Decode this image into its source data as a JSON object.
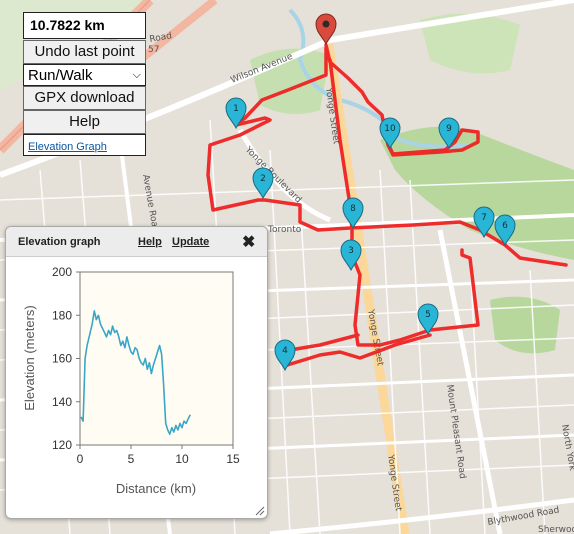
{
  "controls": {
    "distance": "10.7822 km",
    "undo_label": "Undo last point",
    "activity_selected": "Run/Walk",
    "gpx_label": "GPX download",
    "help_label": "Help",
    "elevation_link": "Elevation Graph"
  },
  "map": {
    "street_labels": [
      "Wilson Avenue",
      "Yonge Street",
      "Yonge Street",
      "Yonge Street",
      "Yonge Boulevard",
      "Avenue Road",
      "Mount Pleasant Road",
      "Blythwood Road",
      "North York",
      "Sherwood",
      "Road",
      "57",
      "Toronto"
    ],
    "route_color": "#ee2222",
    "start_marker_color": "#d94a3c",
    "waypoint_color": "#29b6d6",
    "waypoints": [
      "1",
      "2",
      "3",
      "4",
      "5",
      "6",
      "7",
      "8",
      "9",
      "10"
    ]
  },
  "elevation_panel": {
    "title": "Elevation graph",
    "help": "Help",
    "update": "Update",
    "close": "✖"
  },
  "chart_data": {
    "type": "line",
    "title": "",
    "xlabel": "Distance (km)",
    "ylabel": "Elevation (meters)",
    "xlim": [
      0,
      15
    ],
    "ylim": [
      120,
      200
    ],
    "xticks": [
      "0",
      "5",
      "10",
      "15"
    ],
    "yticks": [
      "120",
      "140",
      "160",
      "180",
      "200"
    ],
    "grid": false,
    "line_color": "#3aa6c6",
    "series": [
      {
        "x": [
          0.1,
          0.3,
          0.5,
          0.7,
          1.0,
          1.2,
          1.4,
          1.6,
          1.8,
          2.0,
          2.2,
          2.4,
          2.6,
          2.8,
          3.0,
          3.2,
          3.4,
          3.6,
          3.8,
          4.0,
          4.2,
          4.4,
          4.6,
          4.8,
          5.0,
          5.2,
          5.4,
          5.6,
          5.8,
          6.0,
          6.2,
          6.4,
          6.6,
          6.8,
          7.0,
          7.2,
          7.4,
          7.6,
          7.8,
          8.0,
          8.2,
          8.4,
          8.6,
          8.8,
          9.0,
          9.2,
          9.4,
          9.6,
          9.8,
          10.0,
          10.2,
          10.4,
          10.6,
          10.8
        ],
        "values": [
          133,
          131,
          160,
          166,
          172,
          176,
          182,
          178,
          180,
          176,
          174,
          172,
          170,
          173,
          171,
          175,
          172,
          173,
          170,
          166,
          168,
          165,
          170,
          166,
          163,
          162,
          165,
          164,
          160,
          158,
          157,
          160,
          155,
          158,
          153,
          157,
          160,
          163,
          166,
          162,
          148,
          130,
          127,
          125,
          128,
          126,
          129,
          127,
          130,
          128,
          131,
          130,
          132,
          134
        ]
      }
    ]
  }
}
